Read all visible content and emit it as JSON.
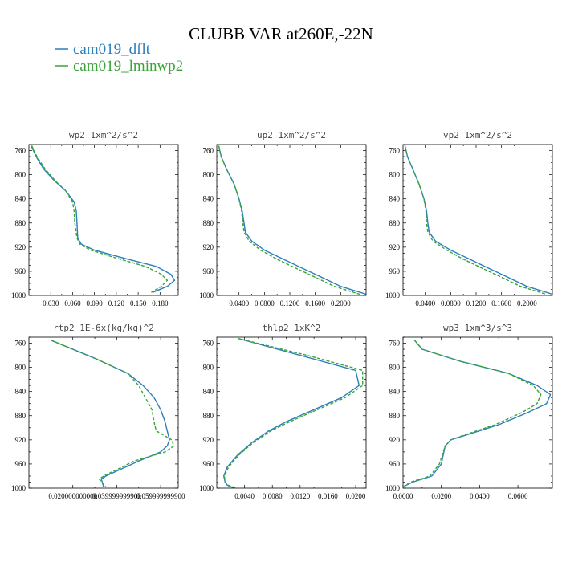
{
  "chart_data": {
    "title": "CLUBB VAR at260E,-22N",
    "legend": [
      {
        "name": "cam019_dflt",
        "color": "#2b7fbd",
        "dash": "solid"
      },
      {
        "name": "cam019_lminwp2",
        "color": "#3aa33a",
        "dash": "dashed"
      }
    ],
    "panels": [
      {
        "type": "line",
        "title": "wp2  1xm^2/s^2",
        "xlim": [
          0.0,
          0.205
        ],
        "ylim": [
          750,
          1000
        ],
        "xticks": [
          0.03,
          0.06,
          0.09,
          0.12,
          0.15,
          0.18
        ],
        "xtick_labels": [
          "0.030",
          "0.060",
          "0.090",
          "0.120",
          "0.150",
          "0.180"
        ],
        "yticks": [
          760,
          800,
          840,
          880,
          920,
          960,
          1000
        ],
        "series": [
          {
            "name": "cam019_dflt",
            "x": [
              0.003,
              0.01,
              0.02,
              0.035,
              0.05,
              0.062,
              0.065,
              0.066,
              0.067,
              0.072,
              0.09,
              0.13,
              0.175,
              0.195,
              0.2,
              0.19,
              0.17
            ],
            "y": [
              752,
              770,
              790,
              810,
              826,
              845,
              860,
              880,
              905,
              915,
              925,
              938,
              952,
              965,
              975,
              985,
              995
            ]
          },
          {
            "name": "cam019_lminwp2",
            "x": [
              0.004,
              0.011,
              0.022,
              0.036,
              0.05,
              0.06,
              0.062,
              0.063,
              0.066,
              0.07,
              0.085,
              0.12,
              0.16,
              0.182,
              0.19,
              0.182,
              0.168
            ],
            "y": [
              752,
              770,
              790,
              810,
              826,
              845,
              860,
              880,
              905,
              915,
              925,
              938,
              952,
              965,
              975,
              985,
              995
            ]
          }
        ]
      },
      {
        "type": "line",
        "title": "up2  1xm^2/s^2",
        "xlim": [
          0.005,
          0.24
        ],
        "ylim": [
          750,
          1000
        ],
        "xticks": [
          0.04,
          0.08,
          0.12,
          0.16,
          0.2
        ],
        "xtick_labels": [
          "0.0400",
          "0.0800",
          "0.1200",
          "0.1600",
          "0.2000"
        ],
        "yticks": [
          760,
          800,
          840,
          880,
          920,
          960,
          1000
        ],
        "series": [
          {
            "name": "cam019_dflt",
            "x": [
              0.008,
              0.012,
              0.02,
              0.032,
              0.04,
              0.045,
              0.048,
              0.05,
              0.06,
              0.08,
              0.11,
              0.14,
              0.17,
              0.2,
              0.24
            ],
            "y": [
              752,
              770,
              790,
              815,
              840,
              860,
              880,
              895,
              910,
              925,
              940,
              955,
              970,
              985,
              998
            ]
          },
          {
            "name": "cam019_lminwp2",
            "x": [
              0.008,
              0.012,
              0.02,
              0.032,
              0.04,
              0.044,
              0.046,
              0.048,
              0.056,
              0.074,
              0.1,
              0.13,
              0.16,
              0.19,
              0.23
            ],
            "y": [
              752,
              770,
              790,
              815,
              840,
              860,
              880,
              895,
              910,
              925,
              940,
              955,
              970,
              985,
              998
            ]
          }
        ]
      },
      {
        "type": "line",
        "title": "vp2  1xm^2/s^2",
        "xlim": [
          0.005,
          0.24
        ],
        "ylim": [
          750,
          1000
        ],
        "xticks": [
          0.04,
          0.08,
          0.12,
          0.16,
          0.2
        ],
        "xtick_labels": [
          "0.0400",
          "0.0800",
          "0.1200",
          "0.1600",
          "0.2000"
        ],
        "yticks": [
          760,
          800,
          840,
          880,
          920,
          960,
          1000
        ],
        "series": [
          {
            "name": "cam019_dflt",
            "x": [
              0.008,
              0.012,
              0.02,
              0.03,
              0.038,
              0.042,
              0.044,
              0.046,
              0.056,
              0.08,
              0.11,
              0.14,
              0.17,
              0.2,
              0.24
            ],
            "y": [
              752,
              770,
              790,
              815,
              840,
              860,
              880,
              895,
              910,
              925,
              940,
              955,
              970,
              985,
              998
            ]
          },
          {
            "name": "cam019_lminwp2",
            "x": [
              0.008,
              0.012,
              0.02,
              0.03,
              0.038,
              0.041,
              0.042,
              0.044,
              0.052,
              0.074,
              0.1,
              0.13,
              0.16,
              0.19,
              0.23
            ],
            "y": [
              752,
              770,
              790,
              815,
              840,
              860,
              880,
              895,
              910,
              925,
              940,
              955,
              970,
              985,
              998
            ]
          }
        ]
      },
      {
        "type": "line",
        "title": "rtp2  1E-6x(kg/kg)^2",
        "xlim": [
          0.0,
          0.068
        ],
        "ylim": [
          750,
          1000
        ],
        "xticks": [
          0.02,
          0.04,
          0.06
        ],
        "xtick_labels": [
          "0.020000000000",
          "0.039999999900",
          "0.059999999900"
        ],
        "yticks": [
          760,
          800,
          840,
          880,
          920,
          960,
          1000
        ],
        "series": [
          {
            "name": "cam019_dflt",
            "x": [
              0.01,
              0.03,
              0.045,
              0.052,
              0.057,
              0.06,
              0.062,
              0.063,
              0.064,
              0.063,
              0.06,
              0.05,
              0.035,
              0.033,
              0.034
            ],
            "y": [
              755,
              785,
              810,
              830,
              850,
              870,
              890,
              905,
              920,
              930,
              940,
              955,
              980,
              985,
              998
            ]
          },
          {
            "name": "cam019_lminwp2",
            "x": [
              0.01,
              0.03,
              0.045,
              0.05,
              0.053,
              0.056,
              0.057,
              0.058,
              0.065,
              0.066,
              0.062,
              0.048,
              0.034,
              0.032,
              0.035
            ],
            "y": [
              755,
              785,
              810,
              830,
              850,
              870,
              890,
              905,
              920,
              930,
              940,
              955,
              980,
              985,
              998
            ]
          }
        ]
      },
      {
        "type": "line",
        "title": "thlp2  1xK^2",
        "xlim": [
          0.0,
          0.0215
        ],
        "ylim": [
          750,
          1000
        ],
        "xticks": [
          0.004,
          0.008,
          0.012,
          0.016,
          0.02
        ],
        "xtick_labels": [
          "0.0040",
          "0.0080",
          "0.0120",
          "0.0160",
          "0.0200"
        ],
        "yticks": [
          760,
          800,
          840,
          880,
          920,
          960,
          1000
        ],
        "series": [
          {
            "name": "cam019_dflt",
            "x": [
              0.003,
              0.012,
              0.02,
              0.0205,
              0.018,
              0.014,
              0.01,
              0.0075,
              0.005,
              0.003,
              0.0015,
              0.001,
              0.0012,
              0.0015,
              0.0025
            ],
            "y": [
              752,
              780,
              805,
              830,
              850,
              870,
              890,
              905,
              925,
              945,
              965,
              980,
              990,
              995,
              1000
            ]
          },
          {
            "name": "cam019_lminwp2",
            "x": [
              0.003,
              0.013,
              0.021,
              0.021,
              0.0185,
              0.0145,
              0.0105,
              0.0078,
              0.0052,
              0.0032,
              0.0017,
              0.0011,
              0.0012,
              0.0016,
              0.0028
            ],
            "y": [
              752,
              780,
              805,
              830,
              850,
              870,
              890,
              905,
              925,
              945,
              965,
              980,
              990,
              995,
              1000
            ]
          }
        ]
      },
      {
        "type": "line",
        "title": "wp3  1xm^3/s^3",
        "xlim": [
          0.0,
          0.078
        ],
        "ylim": [
          750,
          1000
        ],
        "xticks": [
          0.0,
          0.02,
          0.04,
          0.06
        ],
        "xtick_labels": [
          "0.0000",
          "0.0200",
          "0.0400",
          "0.0600"
        ],
        "yticks": [
          760,
          800,
          840,
          880,
          920,
          960,
          1000
        ],
        "series": [
          {
            "name": "cam019_dflt",
            "x": [
              0.006,
              0.01,
              0.03,
              0.055,
              0.07,
              0.077,
              0.075,
              0.065,
              0.05,
              0.035,
              0.025,
              0.022,
              0.02,
              0.015,
              0.005,
              0.0005
            ],
            "y": [
              755,
              770,
              790,
              810,
              830,
              845,
              860,
              875,
              895,
              910,
              920,
              930,
              960,
              980,
              990,
              997
            ]
          },
          {
            "name": "cam019_lminwp2",
            "x": [
              0.006,
              0.01,
              0.03,
              0.055,
              0.068,
              0.072,
              0.07,
              0.062,
              0.048,
              0.034,
              0.025,
              0.022,
              0.019,
              0.014,
              0.004,
              0.0005
            ],
            "y": [
              755,
              770,
              790,
              810,
              830,
              845,
              860,
              875,
              895,
              910,
              920,
              930,
              960,
              980,
              990,
              997
            ]
          }
        ]
      }
    ]
  }
}
